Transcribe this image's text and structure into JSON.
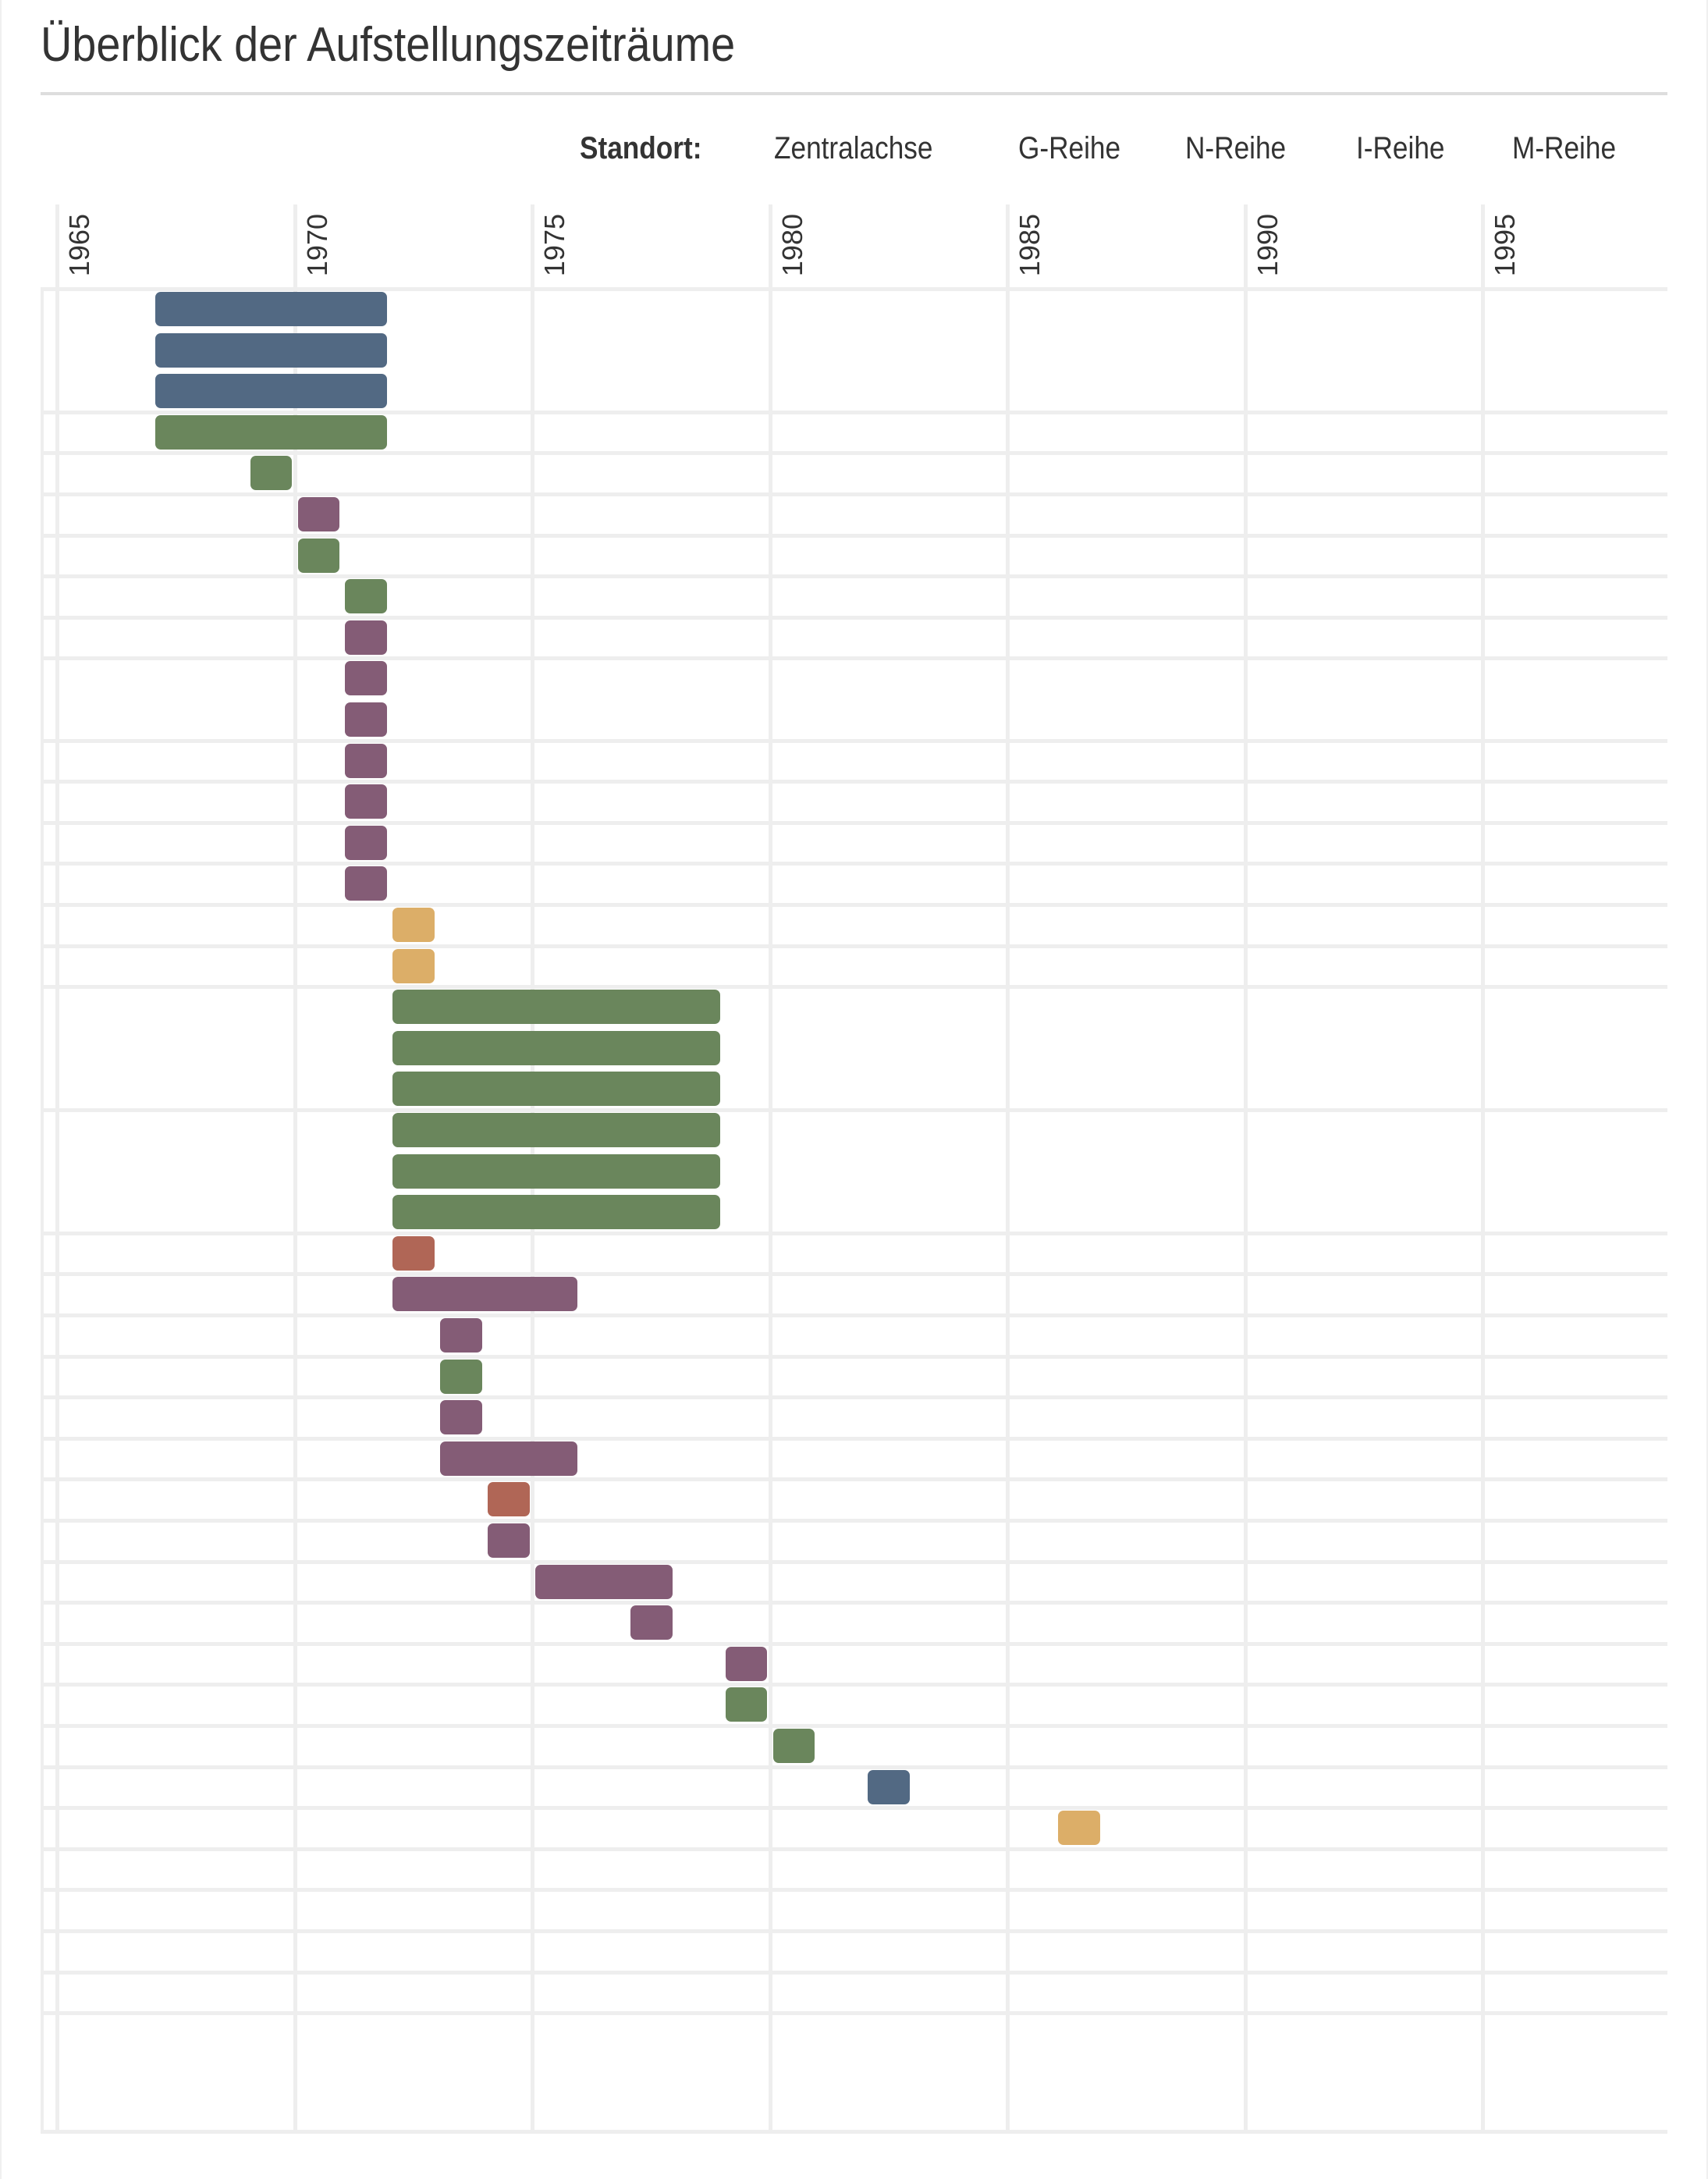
{
  "title": "Überblick der Aufstellungszeiträume",
  "legend": {
    "label": "Standort:",
    "items": [
      {
        "name": "Zentralachse",
        "color": "#526983"
      },
      {
        "name": "G-Reihe",
        "color": "#6a865c"
      },
      {
        "name": "N-Reihe",
        "color": "#845c76"
      },
      {
        "name": "I-Reihe",
        "color": "#b06656"
      },
      {
        "name": "M-Reihe",
        "color": "#dcae68"
      }
    ]
  },
  "axis": {
    "ticks": [
      "1965",
      "1970",
      "1975",
      "1980",
      "1985",
      "1990",
      "1995"
    ]
  },
  "chart_data": {
    "type": "gantt",
    "title": "Überblick der Aufstellungszeiträume",
    "xlabel": "",
    "ylabel": "",
    "x_range": [
      1965,
      1999
    ],
    "x_ticks": [
      1965,
      1970,
      1975,
      1980,
      1985,
      1990,
      1995
    ],
    "grid": true,
    "legend_position": "top-right",
    "legend_title": "Standort:",
    "categories": [
      "Zentralachse",
      "G-Reihe",
      "N-Reihe",
      "I-Reihe",
      "M-Reihe"
    ],
    "colors": {
      "Zentralachse": "#526983",
      "G-Reihe": "#6a865c",
      "N-Reihe": "#845c76",
      "I-Reihe": "#b06656",
      "M-Reihe": "#dcae68"
    },
    "rows": [
      {
        "row": 1,
        "start": 1967,
        "end": 1971,
        "standort": "Zentralachse"
      },
      {
        "row": 2,
        "start": 1967,
        "end": 1971,
        "standort": "Zentralachse"
      },
      {
        "row": 3,
        "start": 1967,
        "end": 1971,
        "standort": "Zentralachse"
      },
      {
        "row": 4,
        "start": 1967,
        "end": 1971,
        "standort": "G-Reihe"
      },
      {
        "row": 5,
        "start": 1969,
        "end": 1969,
        "standort": "G-Reihe"
      },
      {
        "row": 6,
        "start": 1970,
        "end": 1970,
        "standort": "N-Reihe"
      },
      {
        "row": 7,
        "start": 1970,
        "end": 1970,
        "standort": "G-Reihe"
      },
      {
        "row": 8,
        "start": 1971,
        "end": 1971,
        "standort": "G-Reihe"
      },
      {
        "row": 9,
        "start": 1971,
        "end": 1971,
        "standort": "N-Reihe"
      },
      {
        "row": 10,
        "start": 1971,
        "end": 1971,
        "standort": "N-Reihe"
      },
      {
        "row": 11,
        "start": 1971,
        "end": 1971,
        "standort": "N-Reihe"
      },
      {
        "row": 12,
        "start": 1971,
        "end": 1971,
        "standort": "N-Reihe"
      },
      {
        "row": 13,
        "start": 1971,
        "end": 1971,
        "standort": "N-Reihe"
      },
      {
        "row": 14,
        "start": 1971,
        "end": 1971,
        "standort": "N-Reihe"
      },
      {
        "row": 15,
        "start": 1971,
        "end": 1971,
        "standort": "N-Reihe"
      },
      {
        "row": 16,
        "start": 1972,
        "end": 1972,
        "standort": "M-Reihe"
      },
      {
        "row": 17,
        "start": 1972,
        "end": 1972,
        "standort": "M-Reihe"
      },
      {
        "row": 18,
        "start": 1972,
        "end": 1978,
        "standort": "G-Reihe"
      },
      {
        "row": 19,
        "start": 1972,
        "end": 1978,
        "standort": "G-Reihe"
      },
      {
        "row": 20,
        "start": 1972,
        "end": 1978,
        "standort": "G-Reihe"
      },
      {
        "row": 21,
        "start": 1972,
        "end": 1978,
        "standort": "G-Reihe"
      },
      {
        "row": 22,
        "start": 1972,
        "end": 1978,
        "standort": "G-Reihe"
      },
      {
        "row": 23,
        "start": 1972,
        "end": 1978,
        "standort": "G-Reihe"
      },
      {
        "row": 24,
        "start": 1972,
        "end": 1972,
        "standort": "I-Reihe"
      },
      {
        "row": 25,
        "start": 1972,
        "end": 1975,
        "standort": "N-Reihe"
      },
      {
        "row": 26,
        "start": 1973,
        "end": 1973,
        "standort": "N-Reihe"
      },
      {
        "row": 27,
        "start": 1973,
        "end": 1973,
        "standort": "G-Reihe"
      },
      {
        "row": 28,
        "start": 1973,
        "end": 1973,
        "standort": "N-Reihe"
      },
      {
        "row": 29,
        "start": 1973,
        "end": 1975,
        "standort": "N-Reihe"
      },
      {
        "row": 30,
        "start": 1974,
        "end": 1974,
        "standort": "I-Reihe"
      },
      {
        "row": 31,
        "start": 1974,
        "end": 1974,
        "standort": "N-Reihe"
      },
      {
        "row": 32,
        "start": 1975,
        "end": 1977,
        "standort": "N-Reihe"
      },
      {
        "row": 33,
        "start": 1977,
        "end": 1977,
        "standort": "N-Reihe"
      },
      {
        "row": 34,
        "start": 1979,
        "end": 1979,
        "standort": "N-Reihe"
      },
      {
        "row": 35,
        "start": 1979,
        "end": 1979,
        "standort": "G-Reihe"
      },
      {
        "row": 36,
        "start": 1980,
        "end": 1980,
        "standort": "G-Reihe"
      },
      {
        "row": 37,
        "start": 1982,
        "end": 1982,
        "standort": "Zentralachse"
      },
      {
        "row": 38,
        "start": 1986,
        "end": 1986,
        "standort": "M-Reihe"
      },
      {
        "row": 39,
        "start": null,
        "end": null,
        "standort": null
      },
      {
        "row": 40,
        "start": null,
        "end": null,
        "standort": null
      },
      {
        "row": 41,
        "start": null,
        "end": null,
        "standort": null
      },
      {
        "row": 42,
        "start": null,
        "end": null,
        "standort": null
      }
    ],
    "row_groups_without_separator": [
      [
        1,
        3
      ],
      [
        10,
        11
      ],
      [
        18,
        20
      ],
      [
        21,
        23
      ]
    ]
  }
}
